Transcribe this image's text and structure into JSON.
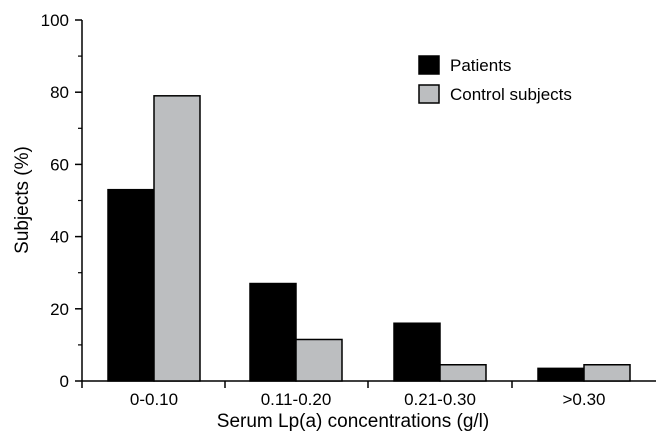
{
  "chart_data": {
    "type": "bar",
    "categories": [
      "0-0.10",
      "0.11-0.20",
      "0.21-0.30",
      ">0.30"
    ],
    "series": [
      {
        "name": "Patients",
        "values": [
          53,
          27,
          16,
          3.5
        ],
        "color": "#000000"
      },
      {
        "name": "Control subjects",
        "values": [
          79,
          11.5,
          4.5,
          4.5
        ],
        "color": "#bcbec0"
      }
    ],
    "title": "",
    "xlabel": "Serum Lp(a) concentrations (g/l)",
    "ylabel": "Subjects (%)",
    "ylim": [
      0,
      100
    ],
    "yticks": [
      0,
      20,
      40,
      60,
      80,
      100
    ],
    "grid": false,
    "legend_position": "top-right"
  }
}
